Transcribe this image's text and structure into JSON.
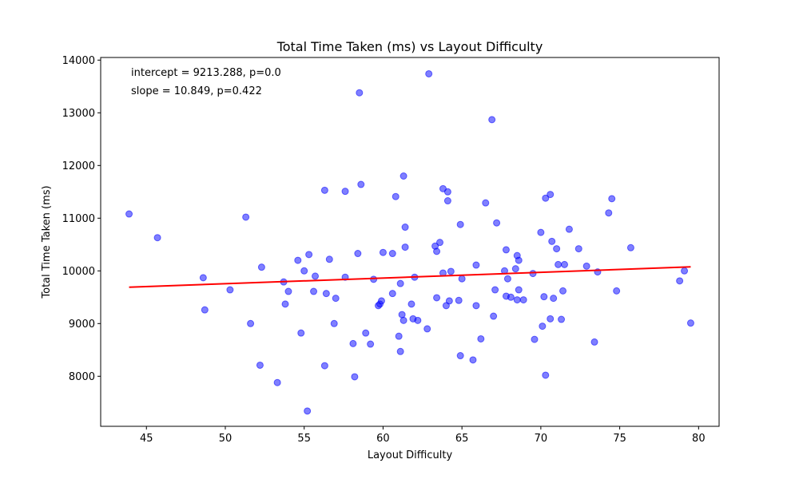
{
  "chart_data": {
    "type": "scatter",
    "title": "Total Time Taken (ms) vs Layout Difficulty",
    "xlabel": "Layout Difficulty",
    "ylabel": "Total Time Taken (ms)",
    "xlim": [
      42.1,
      81.3
    ],
    "ylim": [
      7050,
      14050
    ],
    "xticks": [
      45,
      50,
      55,
      60,
      65,
      70,
      75,
      80
    ],
    "yticks": [
      8000,
      9000,
      10000,
      11000,
      12000,
      13000,
      14000
    ],
    "grid": false,
    "point_color": "#0000ff",
    "line_color": "#ff0000",
    "annotations": [
      "intercept = 9213.288, p=0.0",
      "slope = 10.849, p=0.422"
    ],
    "regression": {
      "intercept": 9213.288,
      "slope": 10.849,
      "x_range": [
        43.9,
        79.5
      ]
    },
    "points": [
      [
        43.9,
        11080
      ],
      [
        45.7,
        10630
      ],
      [
        48.6,
        9870
      ],
      [
        48.7,
        9260
      ],
      [
        50.3,
        9640
      ],
      [
        51.3,
        11020
      ],
      [
        51.6,
        9000
      ],
      [
        52.2,
        8210
      ],
      [
        52.3,
        10070
      ],
      [
        53.3,
        7880
      ],
      [
        53.7,
        9790
      ],
      [
        53.8,
        9370
      ],
      [
        54.0,
        9610
      ],
      [
        54.6,
        10200
      ],
      [
        54.8,
        8820
      ],
      [
        55.0,
        10000
      ],
      [
        55.2,
        7340
      ],
      [
        55.3,
        10310
      ],
      [
        55.6,
        9610
      ],
      [
        55.7,
        9900
      ],
      [
        56.3,
        11530
      ],
      [
        56.3,
        8200
      ],
      [
        56.4,
        9570
      ],
      [
        56.6,
        10220
      ],
      [
        56.9,
        9000
      ],
      [
        57.0,
        9480
      ],
      [
        57.6,
        11510
      ],
      [
        57.6,
        9880
      ],
      [
        58.1,
        8620
      ],
      [
        58.2,
        7990
      ],
      [
        58.4,
        10330
      ],
      [
        58.5,
        13380
      ],
      [
        58.6,
        11640
      ],
      [
        58.9,
        8820
      ],
      [
        59.2,
        8610
      ],
      [
        59.4,
        9840
      ],
      [
        59.7,
        9340
      ],
      [
        59.8,
        9370
      ],
      [
        59.9,
        9430
      ],
      [
        60.0,
        10350
      ],
      [
        60.6,
        9570
      ],
      [
        60.6,
        10330
      ],
      [
        60.8,
        11410
      ],
      [
        61.0,
        8760
      ],
      [
        61.1,
        8470
      ],
      [
        61.1,
        9760
      ],
      [
        61.2,
        9170
      ],
      [
        61.3,
        9060
      ],
      [
        61.3,
        11800
      ],
      [
        61.4,
        10830
      ],
      [
        61.4,
        10450
      ],
      [
        61.8,
        9370
      ],
      [
        61.9,
        9090
      ],
      [
        62.0,
        9880
      ],
      [
        62.2,
        9060
      ],
      [
        62.8,
        8900
      ],
      [
        62.9,
        13740
      ],
      [
        63.3,
        10470
      ],
      [
        63.4,
        10370
      ],
      [
        63.4,
        9490
      ],
      [
        63.6,
        10540
      ],
      [
        63.8,
        11560
      ],
      [
        63.8,
        9960
      ],
      [
        64.0,
        9340
      ],
      [
        64.1,
        11500
      ],
      [
        64.1,
        11330
      ],
      [
        64.2,
        9430
      ],
      [
        64.3,
        9990
      ],
      [
        64.8,
        9440
      ],
      [
        64.9,
        10880
      ],
      [
        64.9,
        8390
      ],
      [
        65.0,
        9850
      ],
      [
        65.7,
        8310
      ],
      [
        65.9,
        10110
      ],
      [
        65.9,
        9340
      ],
      [
        66.2,
        8710
      ],
      [
        66.5,
        11290
      ],
      [
        66.9,
        12870
      ],
      [
        67.0,
        9140
      ],
      [
        67.1,
        9640
      ],
      [
        67.2,
        10910
      ],
      [
        67.7,
        10000
      ],
      [
        67.8,
        10400
      ],
      [
        67.8,
        9520
      ],
      [
        67.9,
        9850
      ],
      [
        68.1,
        9500
      ],
      [
        68.4,
        10040
      ],
      [
        68.5,
        9450
      ],
      [
        68.5,
        10290
      ],
      [
        68.6,
        10200
      ],
      [
        68.6,
        9640
      ],
      [
        68.9,
        9450
      ],
      [
        69.5,
        9950
      ],
      [
        69.6,
        8700
      ],
      [
        70.0,
        10730
      ],
      [
        70.1,
        8950
      ],
      [
        70.2,
        9510
      ],
      [
        70.3,
        11380
      ],
      [
        70.3,
        8020
      ],
      [
        70.6,
        11450
      ],
      [
        70.6,
        9090
      ],
      [
        70.7,
        10560
      ],
      [
        70.8,
        9480
      ],
      [
        71.0,
        10420
      ],
      [
        71.1,
        10120
      ],
      [
        71.3,
        9080
      ],
      [
        71.4,
        9620
      ],
      [
        71.5,
        10120
      ],
      [
        71.8,
        10790
      ],
      [
        72.4,
        10420
      ],
      [
        72.9,
        10090
      ],
      [
        73.4,
        8650
      ],
      [
        73.6,
        9980
      ],
      [
        74.3,
        11100
      ],
      [
        74.5,
        11370
      ],
      [
        74.8,
        9620
      ],
      [
        75.7,
        10440
      ],
      [
        78.8,
        9810
      ],
      [
        79.1,
        10000
      ],
      [
        79.5,
        9010
      ]
    ]
  }
}
